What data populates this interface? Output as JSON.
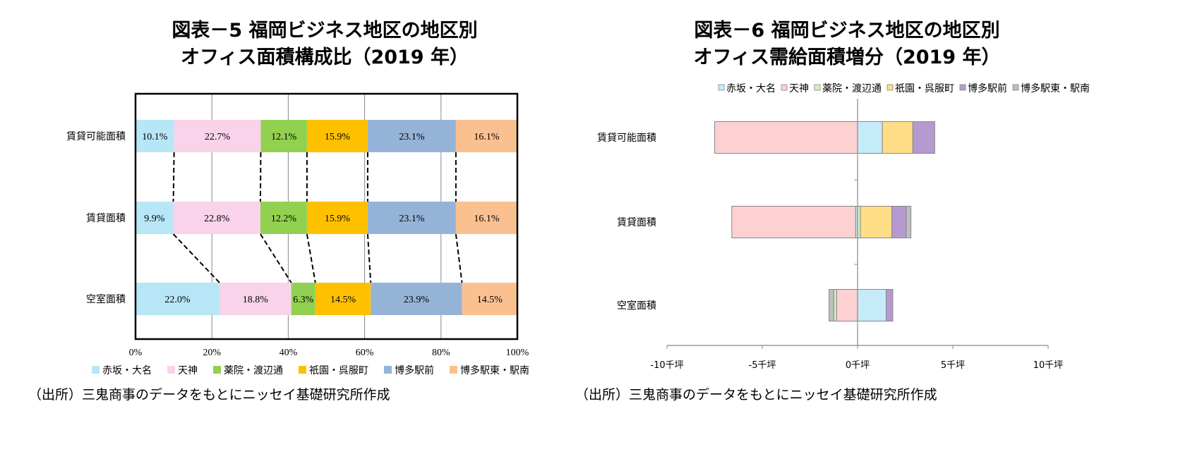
{
  "chart_data": [
    {
      "type": "bar",
      "orientation": "horizontal",
      "stacked": "percent",
      "title_line1": "図表－5  福岡ビジネス地区の地区別",
      "title_line2": "オフィス面積構成比（2019 年）",
      "categories": [
        "賃貸可能面積",
        "賃貸面積",
        "空室面積"
      ],
      "xlim": [
        0,
        100
      ],
      "xticks": [
        "0%",
        "20%",
        "40%",
        "60%",
        "80%",
        "100%"
      ],
      "grid": true,
      "legend_position": "bottom",
      "series": [
        {
          "name": "赤坂・大名",
          "color": "#b7e6f6",
          "values": [
            10.1,
            9.9,
            22.0
          ],
          "labels": [
            "10.1%",
            "9.9%",
            "22.0%"
          ]
        },
        {
          "name": "天神",
          "color": "#f8d3e9",
          "values": [
            22.7,
            22.8,
            18.8
          ],
          "labels": [
            "22.7%",
            "22.8%",
            "18.8%"
          ]
        },
        {
          "name": "薬院・渡辺通",
          "color": "#92d050",
          "values": [
            12.1,
            12.2,
            6.3
          ],
          "labels": [
            "12.1%",
            "12.2%",
            "6.3%"
          ]
        },
        {
          "name": "祇園・呉服町",
          "color": "#ffc000",
          "values": [
            15.9,
            15.9,
            14.5
          ],
          "labels": [
            "15.9%",
            "15.9%",
            "14.5%"
          ]
        },
        {
          "name": "博多駅前",
          "color": "#95b3d7",
          "values": [
            23.1,
            23.1,
            23.9
          ],
          "labels": [
            "23.1%",
            "23.1%",
            "23.9%"
          ]
        },
        {
          "name": "博多駅東・駅南",
          "color": "#fac090",
          "values": [
            16.1,
            16.1,
            14.5
          ],
          "labels": [
            "16.1%",
            "16.1%",
            "14.5%"
          ]
        }
      ],
      "source": "（出所）三鬼商事のデータをもとにニッセイ基礎研究所作成"
    },
    {
      "type": "bar",
      "orientation": "horizontal",
      "stacked": true,
      "title_line1": "図表－6  福岡ビジネス地区の地区別",
      "title_line2": "オフィス需給面積増分（2019 年）",
      "categories": [
        "賃貸可能面積",
        "賃貸面積",
        "空室面積"
      ],
      "xlim": [
        -10,
        10
      ],
      "xticks": [
        "-10千坪",
        "-5千坪",
        "0千坪",
        "5千坪",
        "10千坪"
      ],
      "grid": false,
      "legend_position": "top",
      "series": [
        {
          "name": "赤坂・大名",
          "color": "#c6ebf8",
          "values": [
            1.3,
            -0.1,
            1.5
          ]
        },
        {
          "name": "天神",
          "color": "#fdd0d2",
          "values": [
            -7.5,
            -6.5,
            -1.1
          ]
        },
        {
          "name": "薬院・渡辺通",
          "color": "#d4efc2",
          "values": [
            0.0,
            0.15,
            -0.15
          ]
        },
        {
          "name": "祇園・呉服町",
          "color": "#fedd86",
          "values": [
            1.6,
            1.65,
            0.0
          ]
        },
        {
          "name": "博多駅前",
          "color": "#b49ad0",
          "values": [
            1.15,
            0.75,
            0.35
          ]
        },
        {
          "name": "博多駅東・駅南",
          "color": "#bfbfbf",
          "values": [
            0.0,
            0.25,
            -0.25
          ]
        }
      ],
      "source": "（出所）三鬼商事のデータをもとにニッセイ基礎研究所作成"
    }
  ]
}
